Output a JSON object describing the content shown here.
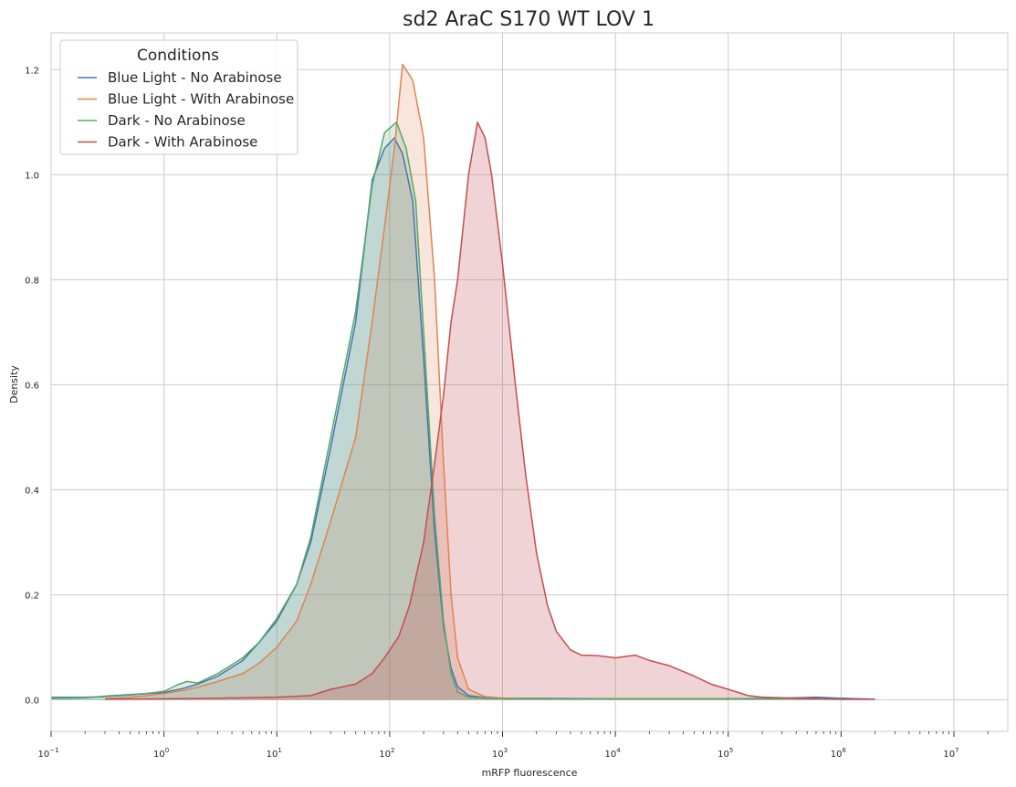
{
  "chart_data": {
    "type": "area",
    "title": "sd2 AraC S170 WT LOV 1",
    "xlabel": "mRFP fluorescence",
    "ylabel": "Density",
    "xscale": "log",
    "xlim": [
      0.1,
      30000000
    ],
    "ylim": [
      -0.06,
      1.27
    ],
    "x_ticks": [
      {
        "value": 0.1,
        "base": "10",
        "exp": "−1"
      },
      {
        "value": 1,
        "base": "10",
        "exp": "0"
      },
      {
        "value": 10,
        "base": "10",
        "exp": "1"
      },
      {
        "value": 100,
        "base": "10",
        "exp": "2"
      },
      {
        "value": 1000,
        "base": "10",
        "exp": "3"
      },
      {
        "value": 10000,
        "base": "10",
        "exp": "4"
      },
      {
        "value": 100000,
        "base": "10",
        "exp": "5"
      },
      {
        "value": 1000000,
        "base": "10",
        "exp": "6"
      },
      {
        "value": 10000000,
        "base": "10",
        "exp": "7"
      }
    ],
    "y_ticks": [
      "0.0",
      "0.2",
      "0.4",
      "0.6",
      "0.8",
      "1.0",
      "1.2"
    ],
    "grid": true,
    "legend": {
      "title": "Conditions",
      "position": "top-left"
    },
    "series": [
      {
        "name": "Blue Light - No Arabinose",
        "color": "#4c72b0",
        "fill_opacity": 0.2,
        "points": [
          [
            0.1,
            0.003
          ],
          [
            0.2,
            0.004
          ],
          [
            0.3,
            0.007
          ],
          [
            0.5,
            0.01
          ],
          [
            0.7,
            0.012
          ],
          [
            1,
            0.014
          ],
          [
            1.5,
            0.022
          ],
          [
            2,
            0.03
          ],
          [
            3,
            0.045
          ],
          [
            5,
            0.075
          ],
          [
            7,
            0.11
          ],
          [
            10,
            0.15
          ],
          [
            15,
            0.22
          ],
          [
            20,
            0.3
          ],
          [
            30,
            0.48
          ],
          [
            50,
            0.72
          ],
          [
            70,
            0.99
          ],
          [
            90,
            1.05
          ],
          [
            110,
            1.07
          ],
          [
            130,
            1.04
          ],
          [
            160,
            0.95
          ],
          [
            200,
            0.65
          ],
          [
            250,
            0.32
          ],
          [
            300,
            0.14
          ],
          [
            350,
            0.06
          ],
          [
            400,
            0.025
          ],
          [
            500,
            0.008
          ],
          [
            700,
            0.004
          ],
          [
            1000,
            0.003
          ],
          [
            10000,
            0.002
          ],
          [
            100000,
            0.002
          ],
          [
            300000,
            0.003
          ],
          [
            600000,
            0.005
          ],
          [
            1000000,
            0.003
          ],
          [
            2000000,
            0.001
          ]
        ]
      },
      {
        "name": "Blue Light - With Arabinose",
        "color": "#dd8452",
        "fill_opacity": 0.2,
        "points": [
          [
            0.3,
            0.002
          ],
          [
            0.5,
            0.005
          ],
          [
            0.7,
            0.008
          ],
          [
            1,
            0.012
          ],
          [
            1.5,
            0.018
          ],
          [
            2,
            0.024
          ],
          [
            3,
            0.035
          ],
          [
            5,
            0.05
          ],
          [
            7,
            0.07
          ],
          [
            10,
            0.1
          ],
          [
            15,
            0.15
          ],
          [
            20,
            0.22
          ],
          [
            30,
            0.34
          ],
          [
            50,
            0.5
          ],
          [
            70,
            0.72
          ],
          [
            90,
            0.9
          ],
          [
            110,
            1.05
          ],
          [
            130,
            1.21
          ],
          [
            160,
            1.18
          ],
          [
            200,
            1.07
          ],
          [
            250,
            0.8
          ],
          [
            300,
            0.45
          ],
          [
            350,
            0.2
          ],
          [
            400,
            0.08
          ],
          [
            500,
            0.02
          ],
          [
            700,
            0.006
          ],
          [
            1000,
            0.003
          ],
          [
            10000,
            0.001
          ],
          [
            100000,
            0.001
          ]
        ]
      },
      {
        "name": "Dark - No Arabinose",
        "color": "#55a868",
        "fill_opacity": 0.2,
        "points": [
          [
            0.1,
            0.005
          ],
          [
            0.2,
            0.005
          ],
          [
            0.3,
            0.006
          ],
          [
            0.5,
            0.009
          ],
          [
            0.7,
            0.012
          ],
          [
            1,
            0.016
          ],
          [
            1.3,
            0.028
          ],
          [
            1.6,
            0.035
          ],
          [
            2,
            0.032
          ],
          [
            3,
            0.05
          ],
          [
            5,
            0.08
          ],
          [
            7,
            0.11
          ],
          [
            10,
            0.155
          ],
          [
            15,
            0.22
          ],
          [
            20,
            0.31
          ],
          [
            30,
            0.5
          ],
          [
            50,
            0.74
          ],
          [
            70,
            0.98
          ],
          [
            90,
            1.08
          ],
          [
            115,
            1.1
          ],
          [
            140,
            1.05
          ],
          [
            170,
            0.95
          ],
          [
            200,
            0.7
          ],
          [
            250,
            0.35
          ],
          [
            300,
            0.15
          ],
          [
            350,
            0.05
          ],
          [
            400,
            0.015
          ],
          [
            500,
            0.005
          ],
          [
            700,
            0.003
          ],
          [
            1000,
            0.002
          ],
          [
            10000,
            0.002
          ],
          [
            100000,
            0.002
          ],
          [
            1000000,
            0.002
          ]
        ]
      },
      {
        "name": "Dark - With Arabinose",
        "color": "#c44e52",
        "fill_opacity": 0.25,
        "points": [
          [
            0.3,
            0.001
          ],
          [
            1,
            0.002
          ],
          [
            3,
            0.003
          ],
          [
            5,
            0.004
          ],
          [
            10,
            0.005
          ],
          [
            20,
            0.008
          ],
          [
            30,
            0.02
          ],
          [
            50,
            0.03
          ],
          [
            70,
            0.05
          ],
          [
            90,
            0.08
          ],
          [
            120,
            0.12
          ],
          [
            150,
            0.18
          ],
          [
            200,
            0.3
          ],
          [
            250,
            0.45
          ],
          [
            300,
            0.58
          ],
          [
            350,
            0.72
          ],
          [
            400,
            0.8
          ],
          [
            500,
            1.0
          ],
          [
            600,
            1.1
          ],
          [
            700,
            1.07
          ],
          [
            800,
            1.0
          ],
          [
            1000,
            0.83
          ],
          [
            1300,
            0.6
          ],
          [
            1600,
            0.43
          ],
          [
            2000,
            0.28
          ],
          [
            2500,
            0.18
          ],
          [
            3000,
            0.13
          ],
          [
            4000,
            0.095
          ],
          [
            5000,
            0.085
          ],
          [
            7000,
            0.084
          ],
          [
            10000,
            0.08
          ],
          [
            15000,
            0.085
          ],
          [
            20000,
            0.075
          ],
          [
            30000,
            0.065
          ],
          [
            50000,
            0.045
          ],
          [
            70000,
            0.03
          ],
          [
            100000,
            0.02
          ],
          [
            150000,
            0.008
          ],
          [
            200000,
            0.005
          ],
          [
            300000,
            0.004
          ],
          [
            1000000,
            0.001
          ],
          [
            2000000,
            0.001
          ]
        ]
      }
    ]
  }
}
